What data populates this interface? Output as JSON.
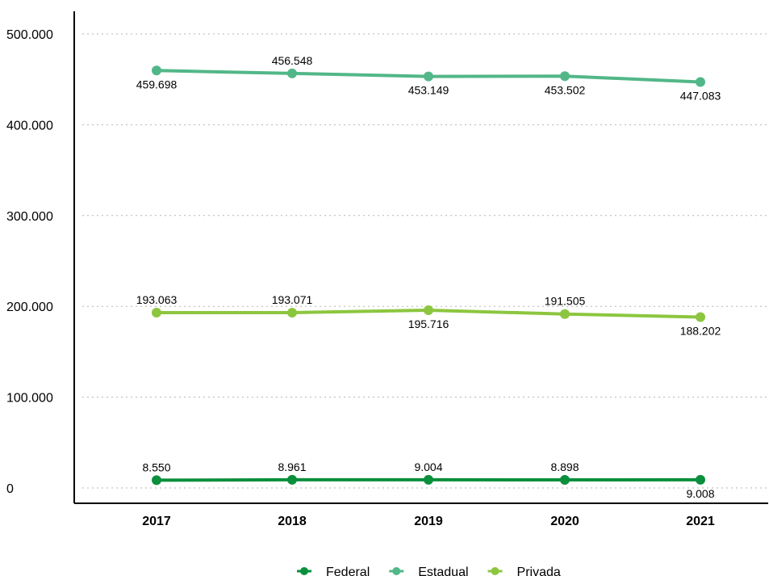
{
  "chart_data": {
    "type": "line",
    "x": [
      "2017",
      "2018",
      "2019",
      "2020",
      "2021"
    ],
    "ylim": [
      0,
      500000
    ],
    "yticks": [
      0,
      100000,
      200000,
      300000,
      400000,
      500000
    ],
    "ytick_labels": [
      "0",
      "100.000",
      "200.000",
      "300.000",
      "400.000",
      "500.000"
    ],
    "grid": "horizontal-dotted",
    "legend_position": "bottom",
    "series": [
      {
        "name": "Federal",
        "color": "#0a8f3c",
        "values": [
          8550,
          8961,
          9004,
          8898,
          9008
        ],
        "labels": [
          "8.550",
          "8.961",
          "9.004",
          "8.898",
          "9.008"
        ],
        "label_pos": [
          "above",
          "above",
          "above",
          "above",
          "below"
        ]
      },
      {
        "name": "Estadual",
        "color": "#52b788",
        "values": [
          459698,
          456548,
          453149,
          453502,
          447083
        ],
        "labels": [
          "459.698",
          "456.548",
          "453.149",
          "453.502",
          "447.083"
        ],
        "label_pos": [
          "below",
          "above",
          "below",
          "below",
          "below"
        ]
      },
      {
        "name": "Privada",
        "color": "#8cc63f",
        "values": [
          193063,
          193071,
          195716,
          191505,
          188202
        ],
        "labels": [
          "193.063",
          "193.071",
          "195.716",
          "191.505",
          "188.202"
        ],
        "label_pos": [
          "above",
          "above",
          "below",
          "above",
          "below"
        ]
      }
    ]
  }
}
